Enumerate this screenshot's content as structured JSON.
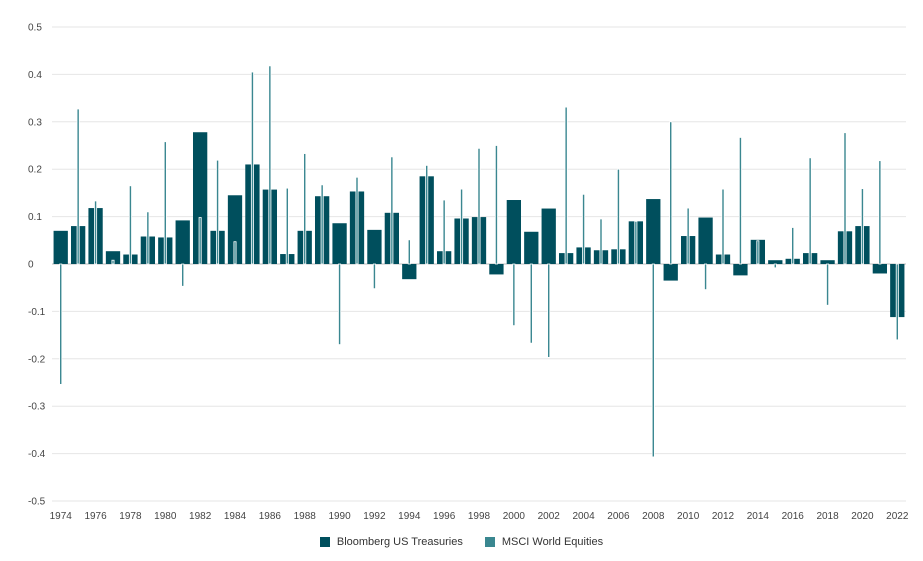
{
  "chart_data": {
    "type": "bar",
    "title": "",
    "xlabel": "",
    "ylabel": "",
    "ylim": [
      -0.5,
      0.5
    ],
    "y_ticks": [
      0.5,
      0.4,
      0.3,
      0.2,
      0.1,
      0,
      -0.1,
      -0.2,
      -0.3,
      -0.4,
      -0.5
    ],
    "y_tick_labels": [
      "0.5",
      "0.4",
      "0.3",
      "0.2",
      "0.1",
      "0",
      "-0.1",
      "-0.2",
      "-0.3",
      "-0.4",
      "-0.5"
    ],
    "x_tick_labels": [
      "1974",
      "1976",
      "1978",
      "1980",
      "1982",
      "1984",
      "1986",
      "1988",
      "1990",
      "1992",
      "1994",
      "1996",
      "1998",
      "2000",
      "2002",
      "2004",
      "2006",
      "2008",
      "2010",
      "2012",
      "2014",
      "2016",
      "2018",
      "2020",
      "2022"
    ],
    "categories": [
      1974,
      1975,
      1976,
      1977,
      1978,
      1979,
      1980,
      1981,
      1982,
      1983,
      1984,
      1985,
      1986,
      1987,
      1988,
      1989,
      1990,
      1991,
      1992,
      1993,
      1994,
      1995,
      1996,
      1997,
      1998,
      1999,
      2000,
      2001,
      2002,
      2003,
      2004,
      2005,
      2006,
      2007,
      2008,
      2009,
      2010,
      2011,
      2012,
      2013,
      2014,
      2015,
      2016,
      2017,
      2018,
      2019,
      2020,
      2021,
      2022
    ],
    "grid": true,
    "legend_position": "bottom-center",
    "series": [
      {
        "name": "Bloomberg US Treasuries",
        "color": "#004f5d",
        "values": [
          0.07,
          0.08,
          0.118,
          0.027,
          0.02,
          0.058,
          0.056,
          0.092,
          0.278,
          0.07,
          0.145,
          0.21,
          0.157,
          0.021,
          0.07,
          0.143,
          0.086,
          0.153,
          0.072,
          0.108,
          -0.032,
          0.185,
          0.027,
          0.096,
          0.099,
          -0.022,
          0.135,
          0.068,
          0.117,
          0.023,
          0.035,
          0.029,
          0.031,
          0.09,
          0.137,
          -0.035,
          0.059,
          0.098,
          0.02,
          -0.024,
          0.051,
          0.008,
          0.011,
          0.023,
          0.008,
          0.069,
          0.08,
          -0.02,
          -0.112
        ]
      },
      {
        "name": "MSCI World Equities",
        "color": "#3a8790",
        "values": [
          -0.254,
          0.327,
          0.133,
          0.008,
          0.165,
          0.11,
          0.258,
          -0.047,
          0.098,
          0.219,
          0.047,
          0.405,
          0.418,
          0.16,
          0.233,
          0.167,
          -0.17,
          0.183,
          -0.052,
          0.226,
          0.051,
          0.208,
          0.135,
          0.158,
          0.244,
          0.25,
          -0.13,
          -0.167,
          -0.197,
          0.331,
          0.147,
          0.095,
          0.2,
          0.09,
          -0.407,
          0.3,
          0.118,
          -0.054,
          0.158,
          0.267,
          0.049,
          -0.008,
          0.077,
          0.224,
          -0.087,
          0.277,
          0.159,
          0.218,
          -0.16
        ]
      }
    ]
  }
}
